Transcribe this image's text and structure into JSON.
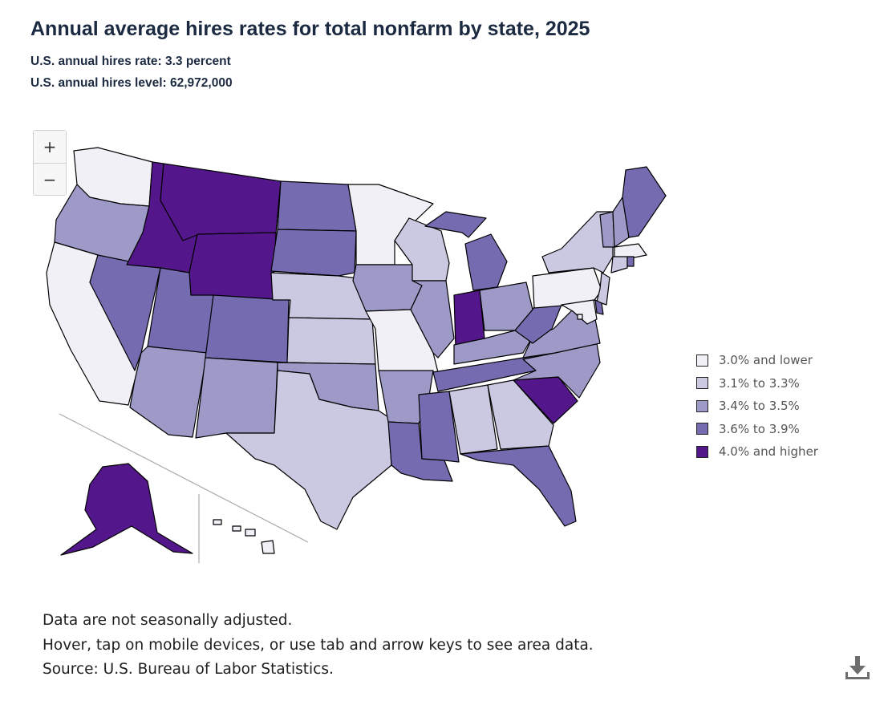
{
  "header": {
    "title": "Annual average hires rates for total nonfarm by state, 2025",
    "us_rate": "U.S. annual hires rate: 3.3 percent",
    "us_level": "U.S. annual hires level: 62,972,000"
  },
  "zoom": {
    "in": "+",
    "out": "−"
  },
  "legend": [
    {
      "label": "3.0% and lower",
      "color": "#f2f0f7"
    },
    {
      "label": "3.1% to 3.3%",
      "color": "#cbc9e2"
    },
    {
      "label": "3.4% to 3.5%",
      "color": "#9e9ac8"
    },
    {
      "label": "3.6% to 3.9%",
      "color": "#756bb1"
    },
    {
      "label": "4.0% and higher",
      "color": "#54178b"
    }
  ],
  "states": {
    "WA": 0,
    "OR": 2,
    "CA": 0,
    "NV": 3,
    "ID": 4,
    "MT": 4,
    "WY": 4,
    "UT": 3,
    "AZ": 2,
    "CO": 3,
    "NM": 2,
    "ND": 3,
    "SD": 3,
    "NE": 1,
    "KS": 1,
    "OK": 2,
    "TX": 1,
    "MN": 0,
    "IA": 2,
    "MO": 0,
    "AR": 2,
    "LA": 3,
    "WI": 1,
    "IL": 2,
    "MI": 3,
    "IN": 4,
    "OH": 2,
    "KY": 2,
    "TN": 3,
    "MS": 3,
    "AL": 1,
    "GA": 1,
    "FL": 3,
    "SC": 4,
    "NC": 2,
    "VA": 2,
    "WV": 3,
    "PA": 0,
    "NY": 1,
    "VT": 2,
    "NH": 2,
    "ME": 3,
    "MA": 0,
    "CT": 1,
    "RI": 3,
    "NJ": 1,
    "DE": 3,
    "MD": 0,
    "DC": 0,
    "AK": 4,
    "HI": 0
  },
  "notes": {
    "line1": "Data are not seasonally adjusted.",
    "line2": "Hover, tap on mobile devices, or use tab and arrow keys to see area data."
  },
  "source": "Source: U.S. Bureau of Labor Statistics.",
  "icons": {
    "download": "download-icon"
  }
}
